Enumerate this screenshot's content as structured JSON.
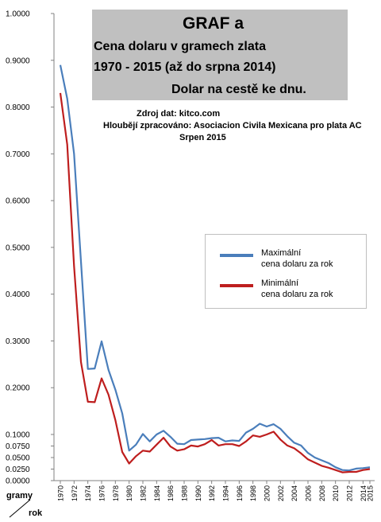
{
  "title": {
    "main": "GRAF a",
    "line1": "Cena dolaru v gramech zlata",
    "line2": "1970 - 2015 (až do srpna 2014)",
    "line3": "Dolar na cestě ke dnu."
  },
  "source": {
    "line1": "Zdroj dat: kitco.com",
    "line2": "Hloubějí zpracováno: Asociacion Civila Mexicana pro plata AC",
    "line3": "Srpen 2015"
  },
  "chart_data": {
    "type": "line",
    "xlabel": "rok",
    "ylabel": "gramy",
    "x": [
      1970,
      1971,
      1972,
      1973,
      1974,
      1975,
      1976,
      1977,
      1978,
      1979,
      1980,
      1981,
      1982,
      1983,
      1984,
      1985,
      1986,
      1987,
      1988,
      1989,
      1990,
      1991,
      1992,
      1993,
      1994,
      1995,
      1996,
      1997,
      1998,
      1999,
      2000,
      2001,
      2002,
      2003,
      2004,
      2005,
      2006,
      2007,
      2008,
      2009,
      2010,
      2011,
      2012,
      2013,
      2014,
      2015
    ],
    "xticks": [
      "1970",
      "1972",
      "1974",
      "1976",
      "1978",
      "1980",
      "1982",
      "1984",
      "1986",
      "1988",
      "1990",
      "1992",
      "1994",
      "1996",
      "1998",
      "2000",
      "2002",
      "2004",
      "2006",
      "2008",
      "2010",
      "2012",
      "2014",
      "2015"
    ],
    "yticks": [
      "1.0000",
      "0.9000",
      "0.8000",
      "0.7000",
      "0.6000",
      "0.5000",
      "0.4000",
      "0.3000",
      "0.2000",
      "0.1000",
      "0.0750",
      "0.0500",
      "0.0250",
      "0.0000"
    ],
    "ylim": [
      0,
      1
    ],
    "grid": false,
    "legend_position": "right",
    "series": [
      {
        "name": "Maximální\ncena dolaru za rok",
        "color": "#4a7ebb",
        "values": [
          0.89,
          0.818,
          0.7,
          0.47,
          0.24,
          0.241,
          0.299,
          0.238,
          0.196,
          0.145,
          0.065,
          0.078,
          0.101,
          0.085,
          0.1,
          0.108,
          0.095,
          0.08,
          0.079,
          0.088,
          0.089,
          0.09,
          0.092,
          0.093,
          0.085,
          0.087,
          0.086,
          0.104,
          0.112,
          0.123,
          0.117,
          0.122,
          0.112,
          0.096,
          0.082,
          0.076,
          0.06,
          0.05,
          0.044,
          0.038,
          0.029,
          0.023,
          0.022,
          0.026,
          0.027,
          0.029
        ]
      },
      {
        "name": "Minimální\ncena dolaru za rok",
        "color": "#be1e1e",
        "values": [
          0.83,
          0.72,
          0.46,
          0.255,
          0.17,
          0.169,
          0.22,
          0.185,
          0.131,
          0.062,
          0.037,
          0.053,
          0.065,
          0.063,
          0.078,
          0.093,
          0.074,
          0.065,
          0.068,
          0.076,
          0.074,
          0.079,
          0.088,
          0.076,
          0.079,
          0.079,
          0.075,
          0.085,
          0.098,
          0.095,
          0.1,
          0.106,
          0.089,
          0.076,
          0.07,
          0.059,
          0.046,
          0.039,
          0.032,
          0.028,
          0.023,
          0.018,
          0.019,
          0.019,
          0.023,
          0.025
        ]
      }
    ]
  }
}
